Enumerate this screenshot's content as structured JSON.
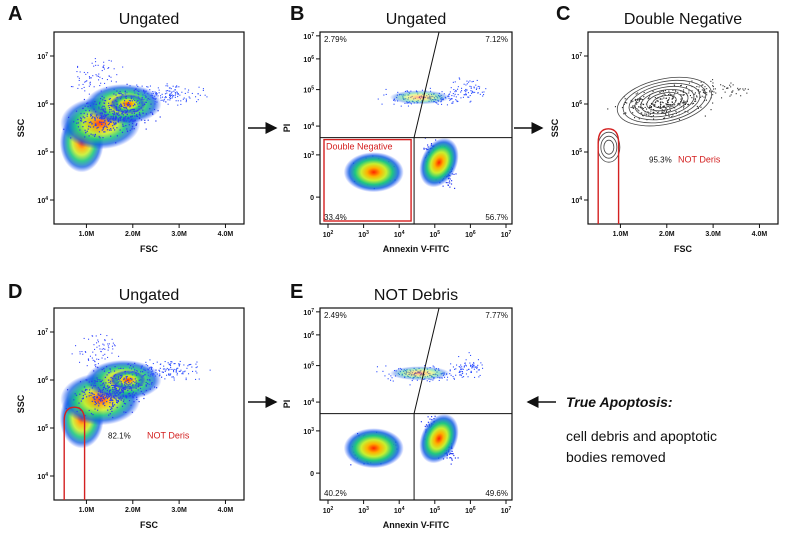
{
  "figure": {
    "annotation": {
      "title": "True Apoptosis:",
      "line1": "cell debris and apoptotic",
      "line2": "bodies removed"
    },
    "colors": {
      "gate": "#d42020",
      "quadrant": "#111111",
      "contour": "#333333"
    }
  },
  "chart_data": [
    {
      "id": "A",
      "type": "scatter",
      "title": "Ungated",
      "xlabel": "FSC",
      "ylabel": "SSC",
      "xlim": [
        0.3,
        4.4
      ],
      "ylim": [
        3.5,
        7.5
      ],
      "xticks": [
        "1.0M",
        "2.0M",
        "3.0M",
        "4.0M"
      ],
      "yticks": [
        "10^4",
        "10^5",
        "10^6",
        "10^7"
      ],
      "population": {
        "cx": 1.8,
        "cy": 6.0,
        "note": "density plot, main population around FSC 1.8M / SSC 10^6"
      }
    },
    {
      "id": "B",
      "type": "scatter",
      "title": "Ungated",
      "xlabel": "Annexin V-FITC",
      "ylabel": "PI",
      "xticks": [
        "10^2",
        "10^3",
        "10^4",
        "10^5",
        "10^6",
        "10^7"
      ],
      "yticks": [
        "0",
        "10^3",
        "10^4",
        "10^5",
        "10^6",
        "10^7"
      ],
      "quadrants": {
        "UL": "2.79%",
        "UR": "7.12%",
        "LL": "33.4%",
        "LR": "56.7%"
      },
      "gate": {
        "name": "Double Negative"
      }
    },
    {
      "id": "C",
      "type": "scatter",
      "title": "Double Negative",
      "xlabel": "FSC",
      "ylabel": "SSC",
      "xlim": [
        0.3,
        4.4
      ],
      "ylim": [
        3.5,
        7.5
      ],
      "xticks": [
        "1.0M",
        "2.0M",
        "3.0M",
        "4.0M"
      ],
      "yticks": [
        "10^4",
        "10^5",
        "10^6",
        "10^7"
      ],
      "gate": {
        "name": "NOT Deris",
        "percent": "95.3%"
      }
    },
    {
      "id": "D",
      "type": "scatter",
      "title": "Ungated",
      "xlabel": "FSC",
      "ylabel": "SSC",
      "xlim": [
        0.3,
        4.4
      ],
      "ylim": [
        3.5,
        7.5
      ],
      "xticks": [
        "1.0M",
        "2.0M",
        "3.0M",
        "4.0M"
      ],
      "yticks": [
        "10^4",
        "10^5",
        "10^6",
        "10^7"
      ],
      "gate": {
        "name": "NOT Deris",
        "percent": "82.1%"
      }
    },
    {
      "id": "E",
      "type": "scatter",
      "title": "NOT Debris",
      "xlabel": "Annexin V-FITC",
      "ylabel": "PI",
      "xticks": [
        "10^2",
        "10^3",
        "10^4",
        "10^5",
        "10^6",
        "10^7"
      ],
      "yticks": [
        "0",
        "10^3",
        "10^4",
        "10^5",
        "10^6",
        "10^7"
      ],
      "quadrants": {
        "UL": "2.49%",
        "UR": "7.77%",
        "LL": "40.2%",
        "LR": "49.6%"
      }
    }
  ]
}
